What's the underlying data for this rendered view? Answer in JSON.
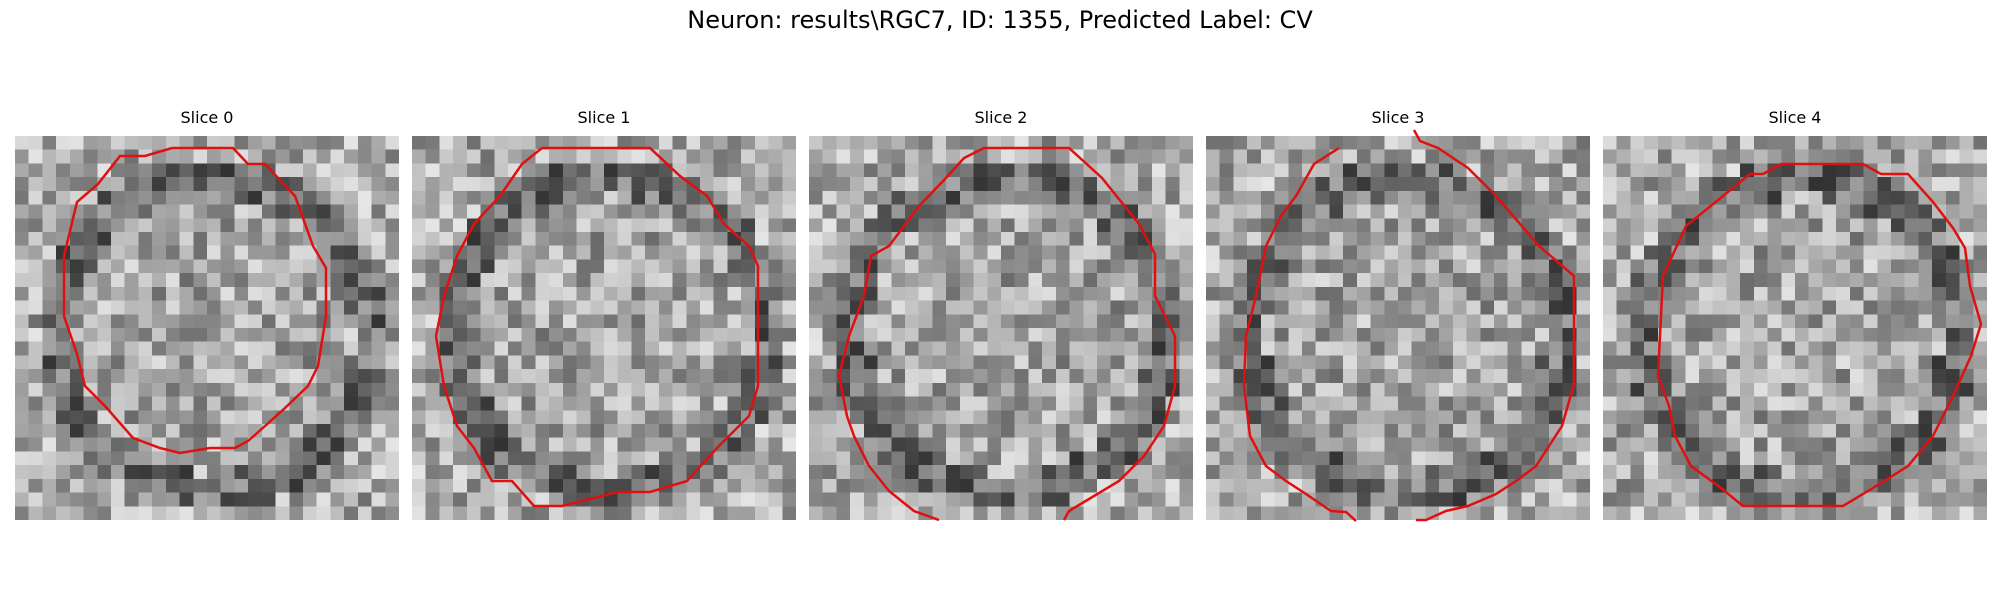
{
  "figure": {
    "title": "Neuron: results\\RGC7, ID: 1355, Predicted Label: CV"
  },
  "slices": [
    {
      "title": "Slice 0"
    },
    {
      "title": "Slice 1"
    },
    {
      "title": "Slice 2"
    },
    {
      "title": "Slice 3"
    },
    {
      "title": "Slice 4"
    }
  ],
  "contour_color": "#e01010",
  "colormap": "gray"
}
